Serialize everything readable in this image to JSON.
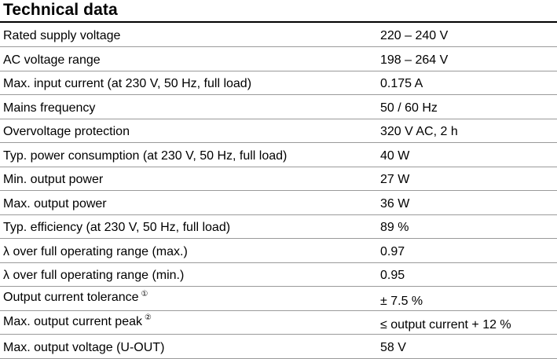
{
  "heading": "Technical data",
  "rows": [
    {
      "label": "Rated supply voltage",
      "value": "220 – 240 V"
    },
    {
      "label": "AC voltage range",
      "value": "198 – 264 V"
    },
    {
      "label": "Max. input current (at 230 V, 50 Hz, full load)",
      "value": "0.175 A"
    },
    {
      "label": "Mains frequency",
      "value": "50 / 60 Hz"
    },
    {
      "label": "Overvoltage protection",
      "value": "320 V AC, 2 h"
    },
    {
      "label": "Typ. power consumption (at 230 V, 50 Hz, full load)",
      "value": "40 W"
    },
    {
      "label": "Min. output power",
      "value": "27 W"
    },
    {
      "label": "Max. output power",
      "value": "36 W"
    },
    {
      "label": "Typ. efficiency (at 230 V, 50 Hz, full load)",
      "value": "89 %"
    },
    {
      "label": "λ over full operating range (max.)",
      "value": "0.97"
    },
    {
      "label": "λ over full operating range (min.)",
      "value": "0.95"
    },
    {
      "label": "Output current tolerance",
      "note": "①",
      "value": "± 7.5 %"
    },
    {
      "label": "Max. output current peak",
      "note": "②",
      "value": "≤ output current + 12 %"
    },
    {
      "label": "Max. output voltage (U-OUT)",
      "value": "58 V"
    }
  ]
}
